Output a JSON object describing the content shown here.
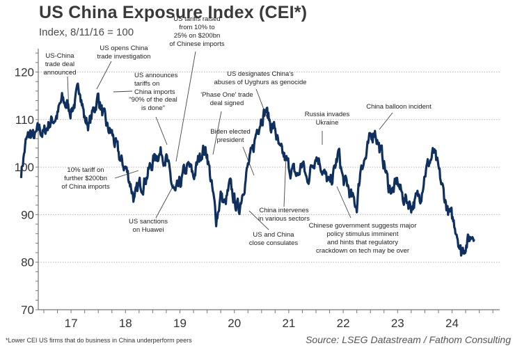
{
  "chart_data": {
    "type": "line",
    "title": "US China Exposure Index (CEI*)",
    "subtitle": "Index, 8/11/16 = 100",
    "xlabel": "",
    "ylabel": "",
    "ylim": [
      70,
      125
    ],
    "yticks": [
      70,
      80,
      90,
      100,
      110,
      120
    ],
    "grid": "horizontal dotted",
    "xticks": [
      "17",
      "18",
      "19",
      "20",
      "21",
      "22",
      "23",
      "24"
    ],
    "x_start": "2016-08",
    "series": [
      {
        "name": "US China Exposure Index",
        "color": "#0f2f5e",
        "frequency": "monthly (approximate)",
        "values": [
          99,
          105,
          107,
          106,
          108,
          107,
          109,
          110,
          111,
          114,
          113,
          112,
          114,
          117,
          110,
          109,
          112,
          115,
          111,
          108,
          107,
          104,
          101,
          100,
          97,
          93,
          96,
          97,
          99,
          101,
          103,
          103,
          102,
          97,
          94,
          96,
          99,
          100,
          98,
          101,
          104,
          103,
          96,
          89,
          94,
          92,
          96,
          93,
          91,
          96,
          100,
          103,
          108,
          111,
          112,
          109,
          108,
          103,
          102,
          100,
          99,
          98,
          101,
          97,
          100,
          103,
          101,
          98,
          96,
          99,
          103,
          97,
          96,
          93,
          92,
          101,
          102,
          106,
          108,
          104,
          101,
          96,
          95,
          97,
          94,
          93,
          92,
          93,
          94,
          99,
          101,
          103,
          99,
          95,
          91,
          89,
          87,
          82,
          84,
          85,
          87
        ]
      }
    ],
    "annotations": [
      {
        "id": "us-china-trade-deal",
        "lines": [
          "US-China",
          "trade deal",
          "announced"
        ],
        "date": "2017-04"
      },
      {
        "id": "trade-investigation",
        "lines": [
          "US opens China",
          "trade investigation"
        ],
        "date": "2017-08"
      },
      {
        "id": "tariffs-announced",
        "lines": [
          "US announces",
          "tariffs on",
          "China imports"
        ],
        "date": "2018-03"
      },
      {
        "id": "ninety-percent",
        "lines": [
          "\"90% of the deal",
          "is done\""
        ],
        "date": "2018-10"
      },
      {
        "id": "tariffs-raised",
        "lines": [
          "US tariffs raised",
          "from 10% to",
          "25% on $200bn",
          "of Chinese imports"
        ],
        "date": "2019-05"
      },
      {
        "id": "ten-percent-tariff",
        "lines": [
          "10% tariff on",
          "further $200bn",
          "of China imports"
        ],
        "date": "2018-09"
      },
      {
        "id": "huawei",
        "lines": [
          "US sanctions",
          "on Huawei"
        ],
        "date": "2019-05"
      },
      {
        "id": "phase-one",
        "lines": [
          "'Phase One' trade",
          "deal signed"
        ],
        "date": "2020-01"
      },
      {
        "id": "biden",
        "lines": [
          "Biden elected",
          "president"
        ],
        "date": "2020-11"
      },
      {
        "id": "consulates",
        "lines": [
          "US and China",
          "close consulates"
        ],
        "date": "2020-07"
      },
      {
        "id": "uyghurs",
        "lines": [
          "US designates China's",
          "abuses of Uyghurs as genocide"
        ],
        "date": "2021-01"
      },
      {
        "id": "sectors",
        "lines": [
          "China intervenes",
          "in various sectors"
        ],
        "date": "2021-07"
      },
      {
        "id": "ukraine",
        "lines": [
          "Russia invades",
          "Ukraine"
        ],
        "date": "2022-02"
      },
      {
        "id": "stimulus",
        "lines": [
          "Chinese government suggests major",
          "policy stimulus imminent",
          "and hints that regulatory",
          "crackdown on tech may be over"
        ],
        "date": "2022-04"
      },
      {
        "id": "balloon",
        "lines": [
          "China balloon incident"
        ],
        "date": "2023-02"
      }
    ]
  },
  "footnote": "*Lower CEI US firms that do business in China underperform peers",
  "source": "Source: LSEG Datastream / Fathom Consulting"
}
